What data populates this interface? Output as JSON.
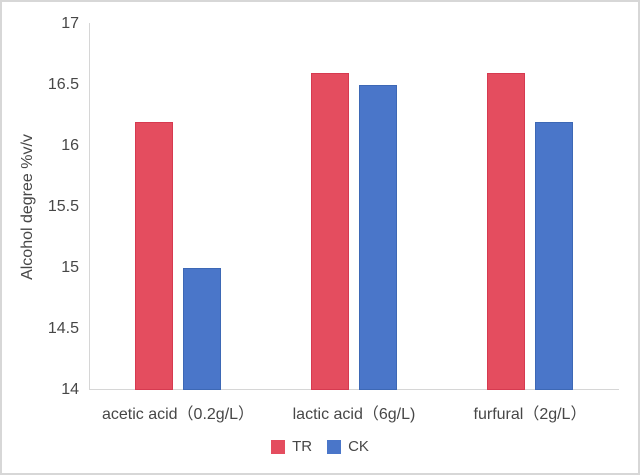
{
  "figure": {
    "background": "#ffffff",
    "border_color": "#d7d7d7",
    "axis_color": "#d6d6d6",
    "text_color": "#474747"
  },
  "chart_data": {
    "type": "bar",
    "title": "",
    "xlabel": "",
    "ylabel": "Alcohol degree %v/v",
    "ylim": [
      14,
      17
    ],
    "ytick_step": 0.5,
    "yticks": [
      "17",
      "16.5",
      "16",
      "15.5",
      "15",
      "14.5",
      "14"
    ],
    "categories": [
      "acetic acid（0.2g/L）",
      "lactic acid（6g/L)",
      "furfural（2g/L）"
    ],
    "series": [
      {
        "name": "TR",
        "values": [
          16.2,
          16.6,
          16.6
        ],
        "color": "#e44d5f",
        "border_color": "#d63a50"
      },
      {
        "name": "CK",
        "values": [
          15.0,
          16.5,
          16.2
        ],
        "color": "#4a76c9",
        "border_color": "#3d68b5"
      }
    ],
    "grid": false,
    "legend_position": "bottom"
  }
}
